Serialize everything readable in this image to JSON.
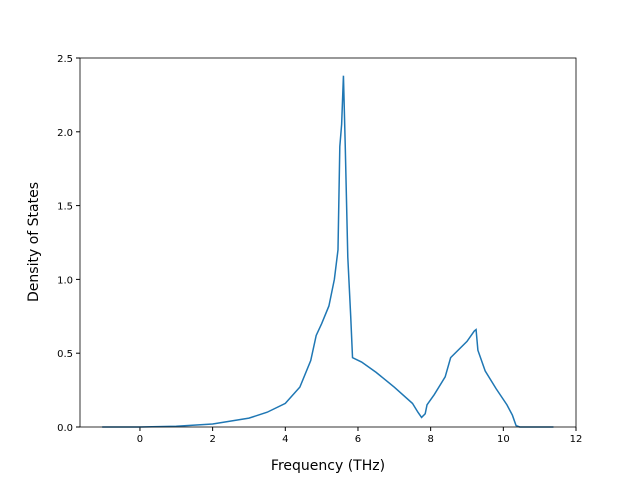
{
  "chart_data": {
    "type": "line",
    "x_label": "Frequency (THz)",
    "y_label": "Density of States",
    "xlim": [
      -1.65,
      12.0
    ],
    "ylim": [
      0,
      2.5
    ],
    "xticks": [
      0,
      2,
      4,
      6,
      8,
      10,
      12
    ],
    "yticks": [
      {
        "value": 0,
        "label": "0.0"
      },
      {
        "value": 0.5,
        "label": "0.5"
      },
      {
        "value": 1,
        "label": "1.0"
      },
      {
        "value": 1.5,
        "label": "1.5"
      },
      {
        "value": 2,
        "label": "2.0"
      },
      {
        "value": 2.5,
        "label": "2.5"
      }
    ],
    "series": [
      {
        "color": "#1f77b4",
        "x": [
          -1.04,
          0,
          1,
          2,
          3,
          3.5,
          4,
          4.4,
          4.7,
          4.85,
          5.0,
          5.2,
          5.35,
          5.45,
          5.5,
          5.55,
          5.6,
          5.65,
          5.72,
          5.8,
          5.85,
          6.1,
          6.5,
          7.0,
          7.5,
          7.65,
          7.75,
          7.85,
          7.9,
          8.1,
          8.4,
          8.55,
          9.0,
          9.2,
          9.25,
          9.3,
          9.5,
          9.8,
          10.1,
          10.25,
          10.35,
          10.45,
          11.38
        ],
        "values": [
          0,
          0,
          0.005,
          0.02,
          0.06,
          0.1,
          0.16,
          0.27,
          0.45,
          0.62,
          0.7,
          0.82,
          1.0,
          1.2,
          1.9,
          2.05,
          2.38,
          1.9,
          1.15,
          0.75,
          0.47,
          0.44,
          0.37,
          0.27,
          0.16,
          0.1,
          0.065,
          0.09,
          0.15,
          0.22,
          0.34,
          0.47,
          0.58,
          0.65,
          0.66,
          0.52,
          0.38,
          0.26,
          0.15,
          0.08,
          0.01,
          0,
          0
        ]
      }
    ]
  }
}
